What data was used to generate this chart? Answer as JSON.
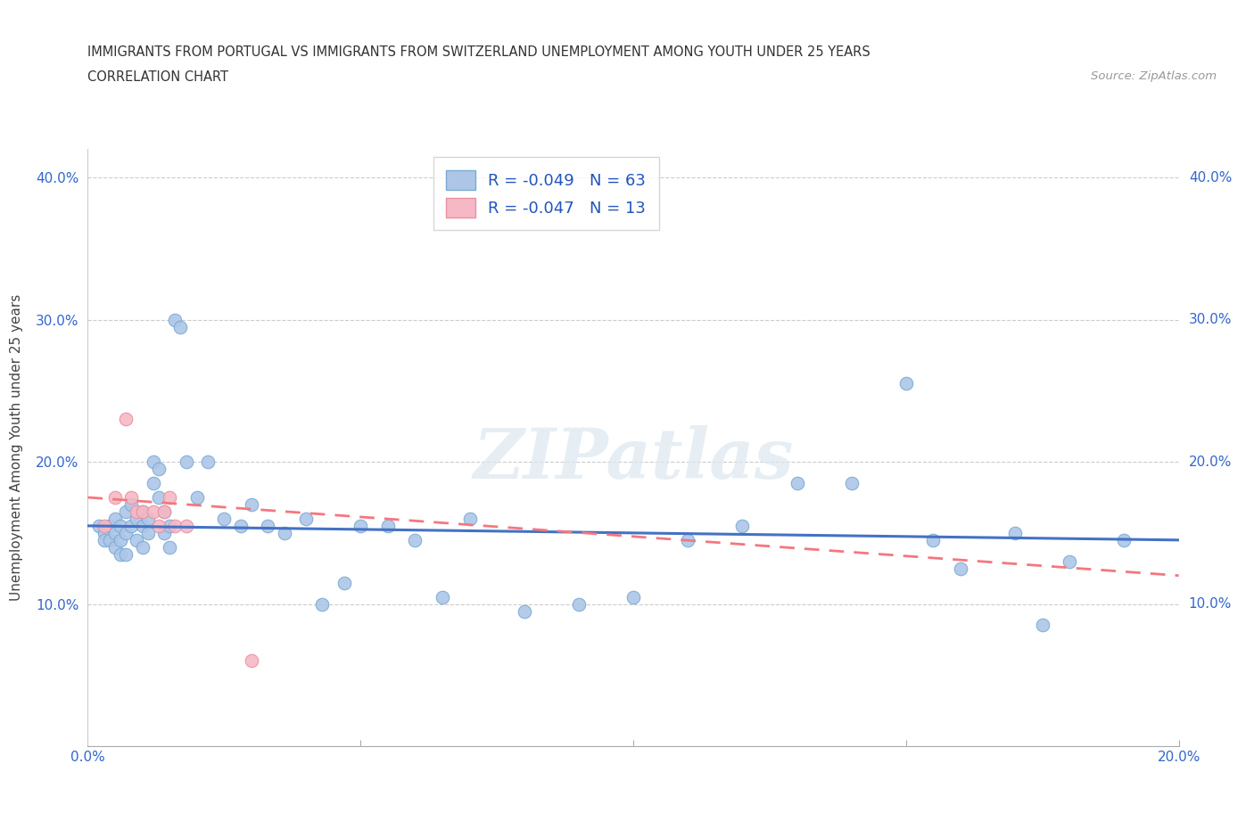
{
  "title_line1": "IMMIGRANTS FROM PORTUGAL VS IMMIGRANTS FROM SWITZERLAND UNEMPLOYMENT AMONG YOUTH UNDER 25 YEARS",
  "title_line2": "CORRELATION CHART",
  "source": "Source: ZipAtlas.com",
  "ylabel": "Unemployment Among Youth under 25 years",
  "xlim": [
    0.0,
    0.2
  ],
  "ylim": [
    0.0,
    0.42
  ],
  "xticks": [
    0.0,
    0.05,
    0.1,
    0.15,
    0.2
  ],
  "xtick_labels": [
    "0.0%",
    "",
    "",
    "",
    "20.0%"
  ],
  "yticks": [
    0.1,
    0.2,
    0.3,
    0.4
  ],
  "ytick_labels_left": [
    "10.0%",
    "20.0%",
    "30.0%",
    "40.0%"
  ],
  "ytick_labels_right": [
    "10.0%",
    "20.0%",
    "30.0%",
    "40.0%"
  ],
  "portugal_color": "#adc6e8",
  "portugal_edge_color": "#7baad4",
  "switzerland_color": "#f5b8c4",
  "switzerland_edge_color": "#e890a0",
  "portugal_line_color": "#4472c4",
  "switzerland_line_color": "#f4777f",
  "watermark": "ZIPatlas",
  "watermark_color": "#dce8f0",
  "legend_r_portugal": "R = -0.049",
  "legend_n_portugal": "N = 63",
  "legend_r_switzerland": "R = -0.047",
  "legend_n_switzerland": "N = 13",
  "legend_text_color": "#2255bb",
  "portugal_x": [
    0.002,
    0.003,
    0.003,
    0.004,
    0.004,
    0.005,
    0.005,
    0.005,
    0.006,
    0.006,
    0.006,
    0.007,
    0.007,
    0.007,
    0.008,
    0.008,
    0.009,
    0.009,
    0.01,
    0.01,
    0.01,
    0.011,
    0.011,
    0.012,
    0.012,
    0.013,
    0.013,
    0.014,
    0.014,
    0.015,
    0.015,
    0.016,
    0.017,
    0.018,
    0.02,
    0.022,
    0.025,
    0.028,
    0.03,
    0.033,
    0.036,
    0.04,
    0.043,
    0.047,
    0.05,
    0.055,
    0.06,
    0.065,
    0.07,
    0.08,
    0.09,
    0.1,
    0.11,
    0.12,
    0.13,
    0.14,
    0.15,
    0.155,
    0.16,
    0.17,
    0.175,
    0.18,
    0.19
  ],
  "portugal_y": [
    0.155,
    0.15,
    0.145,
    0.155,
    0.145,
    0.16,
    0.15,
    0.14,
    0.155,
    0.145,
    0.135,
    0.165,
    0.15,
    0.135,
    0.17,
    0.155,
    0.16,
    0.145,
    0.165,
    0.155,
    0.14,
    0.16,
    0.15,
    0.2,
    0.185,
    0.195,
    0.175,
    0.165,
    0.15,
    0.155,
    0.14,
    0.3,
    0.295,
    0.2,
    0.175,
    0.2,
    0.16,
    0.155,
    0.17,
    0.155,
    0.15,
    0.16,
    0.1,
    0.115,
    0.155,
    0.155,
    0.145,
    0.105,
    0.16,
    0.095,
    0.1,
    0.105,
    0.145,
    0.155,
    0.185,
    0.185,
    0.255,
    0.145,
    0.125,
    0.15,
    0.085,
    0.13,
    0.145
  ],
  "switzerland_x": [
    0.003,
    0.005,
    0.007,
    0.008,
    0.009,
    0.01,
    0.012,
    0.013,
    0.014,
    0.015,
    0.016,
    0.018,
    0.03
  ],
  "switzerland_y": [
    0.155,
    0.175,
    0.23,
    0.175,
    0.165,
    0.165,
    0.165,
    0.155,
    0.165,
    0.175,
    0.155,
    0.155,
    0.06
  ]
}
